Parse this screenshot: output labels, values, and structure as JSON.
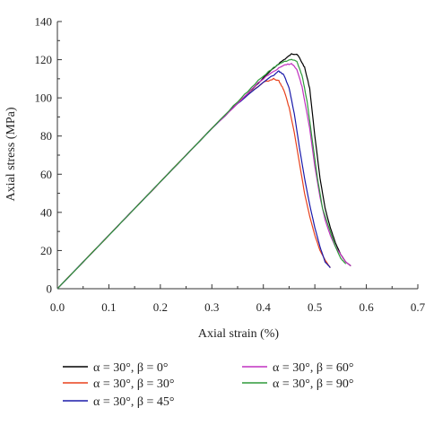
{
  "chart_data": {
    "type": "line",
    "title": "",
    "xlabel": "Axial strain (%)",
    "ylabel": "Axial stress (MPa)",
    "xlim": [
      0.0,
      0.7
    ],
    "ylim": [
      0,
      140
    ],
    "x_ticks": [
      0.0,
      0.1,
      0.2,
      0.3,
      0.4,
      0.5,
      0.6,
      0.7
    ],
    "x_tick_labels": [
      "0.0",
      "0.1",
      "0.2",
      "0.3",
      "0.4",
      "0.5",
      "0.6",
      "0.7"
    ],
    "y_ticks": [
      0,
      20,
      40,
      60,
      80,
      100,
      120,
      140
    ],
    "y_tick_labels": [
      "0",
      "20",
      "40",
      "60",
      "80",
      "100",
      "120",
      "140"
    ],
    "grid": false,
    "legend_position": "bottom, two columns",
    "series": [
      {
        "name": "α = 30°, β = 0°",
        "color": "#000000",
        "points": [
          [
            0.0,
            0
          ],
          [
            0.05,
            14
          ],
          [
            0.1,
            28
          ],
          [
            0.15,
            42
          ],
          [
            0.2,
            56
          ],
          [
            0.25,
            70
          ],
          [
            0.3,
            84
          ],
          [
            0.35,
            97
          ],
          [
            0.38,
            105
          ],
          [
            0.41,
            113
          ],
          [
            0.43,
            118
          ],
          [
            0.445,
            121
          ],
          [
            0.455,
            123
          ],
          [
            0.465,
            123
          ],
          [
            0.47,
            121
          ],
          [
            0.48,
            116
          ],
          [
            0.49,
            105
          ],
          [
            0.5,
            80
          ],
          [
            0.51,
            58
          ],
          [
            0.52,
            42
          ],
          [
            0.53,
            32
          ],
          [
            0.54,
            24
          ],
          [
            0.55,
            18
          ],
          [
            0.56,
            14
          ],
          [
            0.57,
            12
          ]
        ]
      },
      {
        "name": "α = 30°, β = 30°",
        "color": "#e8411c",
        "points": [
          [
            0.0,
            0
          ],
          [
            0.05,
            14
          ],
          [
            0.1,
            28
          ],
          [
            0.15,
            42
          ],
          [
            0.2,
            56
          ],
          [
            0.25,
            70
          ],
          [
            0.3,
            84
          ],
          [
            0.34,
            95
          ],
          [
            0.37,
            102
          ],
          [
            0.4,
            108
          ],
          [
            0.42,
            110
          ],
          [
            0.43,
            109
          ],
          [
            0.44,
            104
          ],
          [
            0.45,
            95
          ],
          [
            0.46,
            82
          ],
          [
            0.47,
            66
          ],
          [
            0.48,
            50
          ],
          [
            0.49,
            38
          ],
          [
            0.5,
            28
          ],
          [
            0.51,
            20
          ],
          [
            0.52,
            15
          ],
          [
            0.53,
            11
          ]
        ]
      },
      {
        "name": "α = 30°, β = 45°",
        "color": "#1a1aaa",
        "points": [
          [
            0.0,
            0
          ],
          [
            0.05,
            14
          ],
          [
            0.1,
            28
          ],
          [
            0.15,
            42
          ],
          [
            0.2,
            56
          ],
          [
            0.25,
            70
          ],
          [
            0.3,
            84
          ],
          [
            0.35,
            97
          ],
          [
            0.39,
            106
          ],
          [
            0.42,
            112
          ],
          [
            0.43,
            114
          ],
          [
            0.44,
            112
          ],
          [
            0.45,
            105
          ],
          [
            0.46,
            92
          ],
          [
            0.47,
            74
          ],
          [
            0.48,
            58
          ],
          [
            0.49,
            44
          ],
          [
            0.5,
            32
          ],
          [
            0.51,
            22
          ],
          [
            0.52,
            14
          ],
          [
            0.53,
            11
          ]
        ]
      },
      {
        "name": "α = 30°, β = 60°",
        "color": "#c030c0",
        "points": [
          [
            0.0,
            0
          ],
          [
            0.05,
            14
          ],
          [
            0.1,
            28
          ],
          [
            0.15,
            42
          ],
          [
            0.2,
            56
          ],
          [
            0.25,
            70
          ],
          [
            0.3,
            84
          ],
          [
            0.35,
            97
          ],
          [
            0.39,
            108
          ],
          [
            0.42,
            114
          ],
          [
            0.44,
            117
          ],
          [
            0.455,
            118
          ],
          [
            0.465,
            115
          ],
          [
            0.475,
            106
          ],
          [
            0.49,
            84
          ],
          [
            0.5,
            64
          ],
          [
            0.51,
            48
          ],
          [
            0.52,
            36
          ],
          [
            0.53,
            28
          ],
          [
            0.54,
            22
          ],
          [
            0.55,
            18
          ],
          [
            0.56,
            14
          ],
          [
            0.57,
            12
          ]
        ]
      },
      {
        "name": "α = 30°, β = 90°",
        "color": "#2e9a3a",
        "points": [
          [
            0.0,
            0
          ],
          [
            0.05,
            14
          ],
          [
            0.1,
            28
          ],
          [
            0.15,
            42
          ],
          [
            0.2,
            56
          ],
          [
            0.25,
            70
          ],
          [
            0.3,
            84
          ],
          [
            0.35,
            98
          ],
          [
            0.39,
            109
          ],
          [
            0.42,
            116
          ],
          [
            0.44,
            119
          ],
          [
            0.455,
            120
          ],
          [
            0.465,
            119
          ],
          [
            0.475,
            112
          ],
          [
            0.485,
            98
          ],
          [
            0.495,
            78
          ],
          [
            0.505,
            58
          ],
          [
            0.515,
            42
          ],
          [
            0.53,
            30
          ],
          [
            0.54,
            22
          ],
          [
            0.55,
            16
          ],
          [
            0.56,
            13
          ]
        ]
      }
    ]
  }
}
